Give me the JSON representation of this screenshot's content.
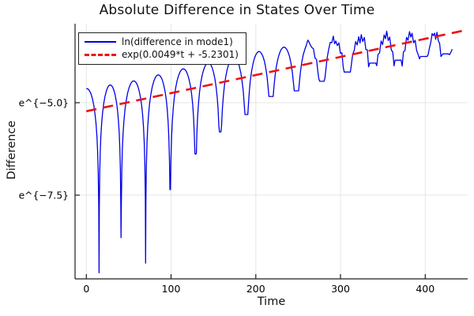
{
  "chart_data": {
    "type": "line",
    "title": "Absolute Difference in States Over Time",
    "xlabel": "Time",
    "ylabel": "Difference",
    "legend_position": "top-left",
    "grid": true,
    "y_scale": "log-e",
    "x_domain": [
      -13.3,
      450.1
    ],
    "y_domain_ln": [
      -9.765,
      -2.863
    ],
    "x_ticks": [
      0,
      100,
      200,
      300,
      400
    ],
    "y_ticks": [
      {
        "ln": -5.0,
        "label": "e^{−5.0}"
      },
      {
        "ln": -7.5,
        "label": "e^{−7.5}"
      }
    ],
    "series": [
      {
        "name": "ln(difference in mode1)",
        "color": "#0000e8",
        "style": "solid",
        "t_start": 0,
        "t_end": 433,
        "description": "oscillatory curve: grows in log space with sharp downward cusps roughly every 29 time units; cusps become shallower over time",
        "envelope_anchors": {
          "t": [
            0,
            50,
            100,
            150,
            200,
            250,
            300,
            350,
            435
          ],
          "ln": [
            -4.62,
            -4.44,
            -4.16,
            -3.89,
            -3.63,
            -3.43,
            -3.28,
            -3.21,
            -3.15
          ]
        },
        "cusps": {
          "t": [
            15,
            41,
            70,
            99,
            129,
            158,
            189,
            218,
            248,
            278,
            308,
            338,
            368,
            398,
            424
          ],
          "ln": [
            -9.6,
            -8.65,
            -9.34,
            -7.35,
            -6.39,
            -5.79,
            -5.32,
            -4.83,
            -4.68,
            -4.42,
            -4.17,
            -3.93,
            -3.85,
            -3.75,
            -3.68
          ]
        },
        "noise": {
          "t_start": 258,
          "amp1": 0.1,
          "freq1": 1.9,
          "amp2": 0.065,
          "freq2": 3.3
        }
      },
      {
        "name": "exp(0.0049*t + -5.2301)",
        "color": "#ee1111",
        "style": "dashed",
        "slope": 0.0049,
        "intercept": -5.2301,
        "t_start": 0,
        "t_end": 444
      }
    ],
    "style": {
      "grid_color": "#e5e5e5",
      "spine_color": "#1c1c1c",
      "text_color": "#000000",
      "background": "#ffffff"
    }
  }
}
